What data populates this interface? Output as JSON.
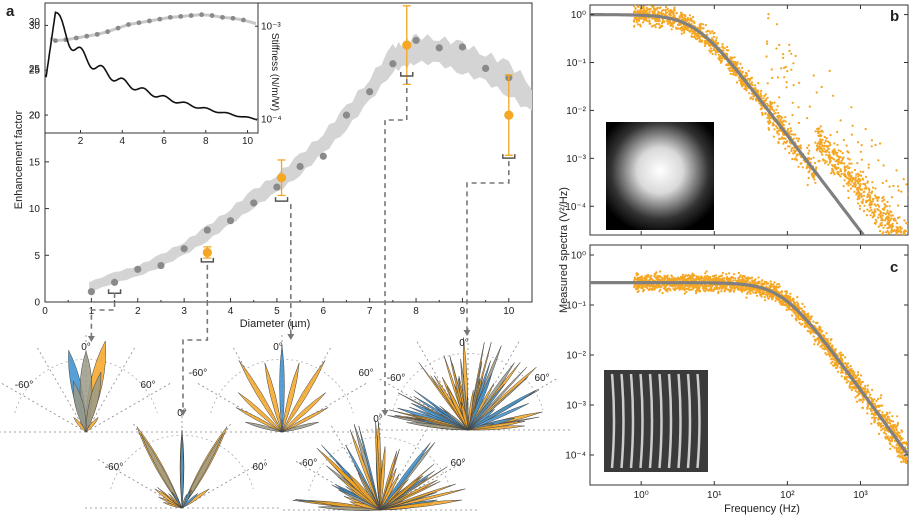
{
  "colors": {
    "orange": "#f5a623",
    "blue": "#3a8fd0",
    "gray": "#8a8a8a",
    "band": "#d4d4d4",
    "black": "#111111"
  },
  "panel_labels": {
    "a": "a",
    "b": "b",
    "c": "c"
  },
  "chart_data": [
    {
      "id": "a-main",
      "type": "scatter",
      "xlabel": "Diameter (µm)",
      "ylabel": "Enhancement factor",
      "xlim": [
        0,
        10.5
      ],
      "ylim": [
        0,
        32
      ],
      "x_ticks": [
        "0",
        "1",
        "2",
        "3",
        "4",
        "5",
        "6",
        "7",
        "8",
        "9",
        "10"
      ],
      "y_ticks": [
        "0",
        "5",
        "10",
        "15",
        "20",
        "25",
        "30"
      ],
      "series": [
        {
          "kind": "simulation-points",
          "x": [
            1.0,
            1.5,
            2.0,
            2.5,
            3.0,
            3.5,
            4.0,
            4.5,
            5.0,
            5.5,
            6.0,
            6.5,
            7.0,
            7.5,
            8.0,
            8.5,
            9.0,
            9.5,
            10.0
          ],
          "y": [
            1.1,
            2.1,
            3.5,
            3.9,
            5.7,
            7.7,
            8.7,
            10.6,
            12.3,
            14.5,
            15.6,
            20.0,
            22.5,
            25.5,
            28.0,
            27.2,
            27.3,
            25.0,
            24.0
          ]
        },
        {
          "kind": "measured",
          "x": [
            3.5,
            5.1,
            7.8,
            10.0
          ],
          "y": [
            5.3,
            13.3,
            27.5,
            20.0
          ],
          "err": [
            0.6,
            1.9,
            4.2,
            4.3
          ]
        }
      ],
      "band_x": [
        0.95,
        1.5,
        2.0,
        2.5,
        3.0,
        3.5,
        4.0,
        4.5,
        5.0,
        5.5,
        6.0,
        6.5,
        7.0,
        7.5,
        7.75,
        8.0,
        8.5,
        9.0,
        9.5,
        10.0,
        10.5
      ],
      "band_y": [
        1.5,
        2.5,
        3.2,
        4.3,
        5.6,
        7.2,
        9.0,
        10.9,
        12.5,
        14.5,
        16.8,
        19.5,
        22.5,
        25.8,
        26.2,
        26.8,
        26.6,
        25.8,
        24.8,
        23.5,
        21.5
      ]
    },
    {
      "id": "a-inset",
      "type": "line",
      "xlabel": "",
      "ylabel": "Stiffness (N/m/W)",
      "xlim": [
        0.3,
        10.5
      ],
      "x_ticks": [
        "2",
        "4",
        "6",
        "8",
        "10"
      ],
      "y_ticks_left": [
        "20",
        "25",
        "30"
      ],
      "y_ticks_right": [
        "10⁻³",
        "10⁻⁴"
      ],
      "series": [
        {
          "kind": "enhancement-dots",
          "x": [
            0.8,
            1.3,
            1.8,
            2.3,
            2.8,
            3.3,
            3.8,
            4.3,
            4.8,
            5.3,
            5.8,
            6.3,
            6.8,
            7.3,
            7.8,
            8.3,
            8.8,
            9.3,
            9.8
          ],
          "y": [
            28.3,
            28.4,
            28.6,
            28.8,
            29.0,
            29.3,
            29.7,
            30.1,
            30.3,
            30.5,
            30.7,
            30.9,
            31.0,
            31.1,
            31.2,
            31.1,
            30.9,
            30.8,
            30.6
          ]
        },
        {
          "kind": "stiffness",
          "x": [
            0.3,
            0.6,
            0.8,
            1.0,
            1.2,
            1.4,
            1.7,
            2.0,
            2.4,
            2.8,
            3.2,
            3.7,
            4.2,
            4.8,
            5.4,
            6.0,
            6.8,
            7.6,
            8.5,
            9.4,
            10.5
          ],
          "log_y": [
            -3.55,
            -2.95,
            -2.85,
            -2.95,
            -3.25,
            -3.35,
            -3.5,
            -3.58,
            -3.65,
            -3.72,
            -3.76,
            -3.8,
            -3.84,
            -3.86,
            -3.89,
            -3.91,
            -3.93,
            -3.95,
            -3.97,
            -3.99,
            -4.01
          ]
        }
      ]
    },
    {
      "id": "b",
      "type": "scatter",
      "xlabel": "",
      "ylabel": "Measured spectra (V²/Hz)",
      "xscale": "log",
      "yscale": "log",
      "xlim_log": [
        -0.7,
        3.65
      ],
      "ylim_log": [
        -4.6,
        0.2
      ],
      "x_ticks": [
        "10⁰",
        "10¹",
        "10²",
        "10³"
      ],
      "y_ticks": [
        "10⁰",
        "10⁻¹",
        "10⁻²",
        "10⁻³",
        "10⁻⁴"
      ],
      "fit": {
        "plateau": 1.0,
        "corner_hz": 5.5
      }
    },
    {
      "id": "c",
      "type": "scatter",
      "xlabel": "Frequency (Hz)",
      "xscale": "log",
      "yscale": "log",
      "xlim_log": [
        -0.7,
        3.65
      ],
      "ylim_log": [
        -4.6,
        0.2
      ],
      "x_ticks": [
        "10⁰",
        "10¹",
        "10²",
        "10³"
      ],
      "y_ticks": [
        "10⁰",
        "10⁻¹",
        "10⁻²",
        "10⁻³",
        "10⁻⁴"
      ],
      "fit": {
        "plateau": 0.28,
        "corner_hz": 85
      }
    }
  ],
  "polar": {
    "angle_labels": [
      "0°",
      "-60°",
      "60°"
    ]
  }
}
